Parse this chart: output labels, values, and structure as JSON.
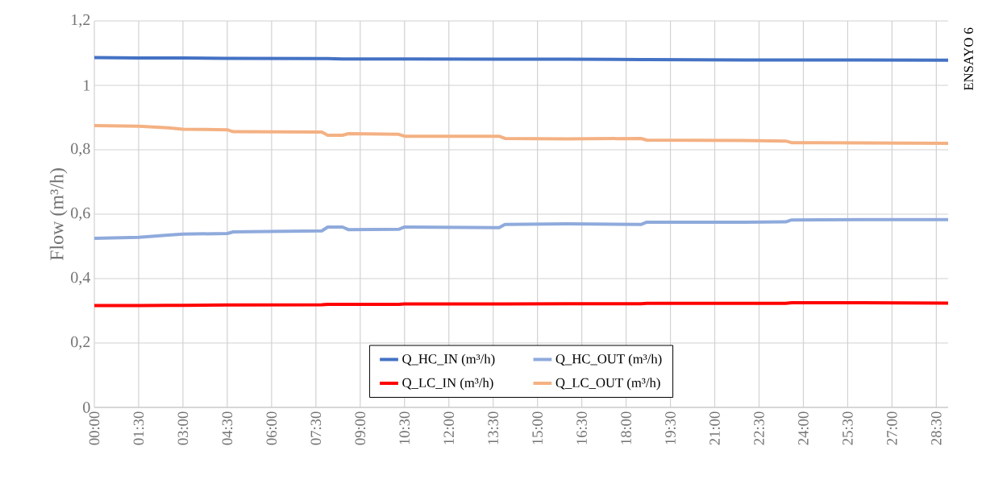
{
  "chart_data": {
    "type": "line",
    "ylabel": "Flow (m³/h)",
    "annotations": [
      "ENSAYO 6"
    ],
    "x": [
      0,
      1.5,
      2.5,
      3,
      4.5,
      4.7,
      7.7,
      7.9,
      8.4,
      8.6,
      10.3,
      10.5,
      13.7,
      13.9,
      16,
      18.5,
      18.7,
      22,
      23.4,
      23.6,
      26,
      28.9
    ],
    "series": [
      {
        "name": "Q_HC_IN (m³/h)",
        "color": "#4472c4",
        "values": [
          1.086,
          1.085,
          1.085,
          1.085,
          1.084,
          1.084,
          1.083,
          1.083,
          1.082,
          1.082,
          1.082,
          1.082,
          1.081,
          1.081,
          1.081,
          1.08,
          1.08,
          1.079,
          1.079,
          1.079,
          1.079,
          1.078
        ]
      },
      {
        "name": "Q_HC_OUT (m³/h)",
        "color": "#8faadc",
        "values": [
          0.525,
          0.528,
          0.535,
          0.538,
          0.54,
          0.545,
          0.548,
          0.56,
          0.56,
          0.552,
          0.553,
          0.56,
          0.558,
          0.568,
          0.57,
          0.568,
          0.575,
          0.575,
          0.576,
          0.582,
          0.583,
          0.583
        ]
      },
      {
        "name": "Q_LC_IN (m³/h)",
        "color": "#ff0000",
        "values": [
          0.316,
          0.316,
          0.317,
          0.317,
          0.318,
          0.318,
          0.319,
          0.32,
          0.32,
          0.32,
          0.32,
          0.321,
          0.321,
          0.321,
          0.322,
          0.322,
          0.323,
          0.323,
          0.323,
          0.325,
          0.325,
          0.324
        ]
      },
      {
        "name": "Q_LC_OUT (m³/h)",
        "color": "#f4b183",
        "values": [
          0.875,
          0.873,
          0.868,
          0.864,
          0.862,
          0.856,
          0.855,
          0.845,
          0.845,
          0.85,
          0.848,
          0.842,
          0.842,
          0.835,
          0.834,
          0.835,
          0.83,
          0.829,
          0.827,
          0.822,
          0.821,
          0.82
        ]
      }
    ],
    "xlim": [
      0,
      28.9
    ],
    "ylim": [
      0,
      1.2
    ],
    "xticks": [
      {
        "value": 0,
        "label": "00:00"
      },
      {
        "value": 1.5,
        "label": "01:30"
      },
      {
        "value": 3,
        "label": "03:00"
      },
      {
        "value": 4.5,
        "label": "04:30"
      },
      {
        "value": 6,
        "label": "06:00"
      },
      {
        "value": 7.5,
        "label": "07:30"
      },
      {
        "value": 9,
        "label": "09:00"
      },
      {
        "value": 10.5,
        "label": "10:30"
      },
      {
        "value": 12,
        "label": "12:00"
      },
      {
        "value": 13.5,
        "label": "13:30"
      },
      {
        "value": 15,
        "label": "15:00"
      },
      {
        "value": 16.5,
        "label": "16:30"
      },
      {
        "value": 18,
        "label": "18:00"
      },
      {
        "value": 19.5,
        "label": "19:30"
      },
      {
        "value": 21,
        "label": "21:00"
      },
      {
        "value": 22.5,
        "label": "22:30"
      },
      {
        "value": 24,
        "label": "24:00"
      },
      {
        "value": 25.5,
        "label": "25:30"
      },
      {
        "value": 27,
        "label": "27:00"
      },
      {
        "value": 28.5,
        "label": "28:30"
      }
    ],
    "yticks": [
      0,
      {
        "value": 0.2,
        "label": "0,2"
      },
      {
        "value": 0.4,
        "label": "0,4"
      },
      {
        "value": 0.6,
        "label": "0,6"
      },
      {
        "value": 0.8,
        "label": "0,8"
      },
      1,
      {
        "value": 1.2,
        "label": "1,2"
      }
    ],
    "grid": true,
    "legend": "bottom",
    "line_style": "solid"
  }
}
